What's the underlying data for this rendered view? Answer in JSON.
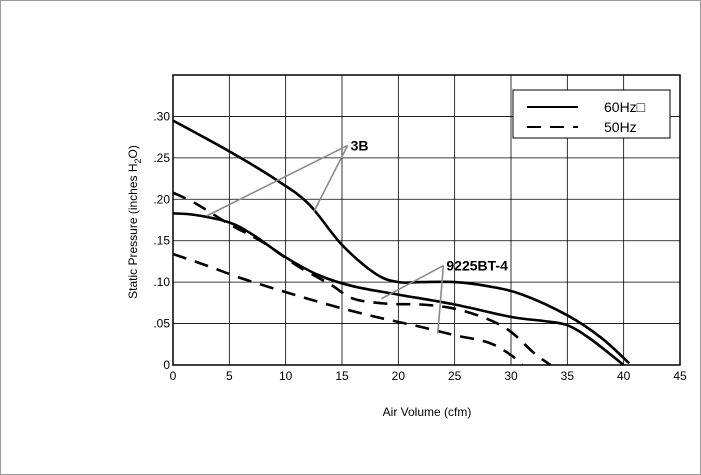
{
  "chart_data": {
    "type": "line",
    "xlabel": "Air Volume (cfm)",
    "ylabel_main": "Static Pressure (inches H",
    "ylabel_sub": "2",
    "ylabel_end": "O)",
    "xlim": [
      0,
      45
    ],
    "ylim": [
      0,
      0.35
    ],
    "x_ticks": [
      "0",
      "5",
      "10",
      "15",
      "20",
      "25",
      "30",
      "35",
      "40",
      "45"
    ],
    "y_ticks": [
      "0",
      ".05",
      ".10",
      ".15",
      ".20",
      ".25",
      ".30"
    ],
    "grid": true,
    "legend_position": "top-right",
    "legend": [
      {
        "label": "60Hz□",
        "style": "solid"
      },
      {
        "label": "50Hz",
        "style": "dashed"
      }
    ],
    "series": [
      {
        "model": "3B",
        "style": "solid",
        "points": [
          [
            0,
            0.295
          ],
          [
            3,
            0.273
          ],
          [
            6,
            0.25
          ],
          [
            9,
            0.225
          ],
          [
            12,
            0.195
          ],
          [
            15,
            0.145
          ],
          [
            18,
            0.11
          ],
          [
            20,
            0.1
          ],
          [
            22,
            0.1
          ],
          [
            25,
            0.1
          ],
          [
            28,
            0.095
          ],
          [
            31,
            0.085
          ],
          [
            35,
            0.06
          ],
          [
            38,
            0.033
          ],
          [
            40.5,
            0.002
          ]
        ]
      },
      {
        "model": "3B",
        "style": "dashed",
        "points": [
          [
            0,
            0.208
          ],
          [
            2,
            0.195
          ],
          [
            5,
            0.17
          ],
          [
            8,
            0.148
          ],
          [
            11,
            0.12
          ],
          [
            14,
            0.097
          ],
          [
            16,
            0.08
          ],
          [
            19,
            0.074
          ],
          [
            22,
            0.073
          ],
          [
            25,
            0.068
          ],
          [
            28,
            0.055
          ],
          [
            30,
            0.04
          ],
          [
            32,
            0.015
          ],
          [
            33.5,
            0.0
          ]
        ]
      },
      {
        "model": "9225BT-4",
        "style": "solid",
        "points": [
          [
            0,
            0.183
          ],
          [
            2,
            0.181
          ],
          [
            5,
            0.172
          ],
          [
            7,
            0.158
          ],
          [
            10,
            0.13
          ],
          [
            13,
            0.108
          ],
          [
            16,
            0.095
          ],
          [
            20,
            0.085
          ],
          [
            25,
            0.073
          ],
          [
            30,
            0.058
          ],
          [
            33,
            0.053
          ],
          [
            35,
            0.048
          ],
          [
            37,
            0.032
          ],
          [
            40,
            0.0
          ]
        ]
      },
      {
        "model": "9225BT-4",
        "style": "dashed",
        "points": [
          [
            0,
            0.134
          ],
          [
            3,
            0.12
          ],
          [
            6,
            0.105
          ],
          [
            10,
            0.088
          ],
          [
            14,
            0.072
          ],
          [
            18,
            0.058
          ],
          [
            22,
            0.046
          ],
          [
            25,
            0.036
          ],
          [
            28,
            0.027
          ],
          [
            30,
            0.012
          ],
          [
            31,
            0.0
          ]
        ]
      }
    ],
    "annotations": [
      {
        "text": "3B",
        "x": 15.5,
        "y": 0.265,
        "targets": [
          [
            3,
            0.18
          ],
          [
            12.5,
            0.185
          ]
        ]
      },
      {
        "text": "9225BT-4",
        "x": 24,
        "y": 0.12,
        "targets": [
          [
            18.5,
            0.08
          ],
          [
            23.5,
            0.038
          ]
        ]
      }
    ]
  }
}
